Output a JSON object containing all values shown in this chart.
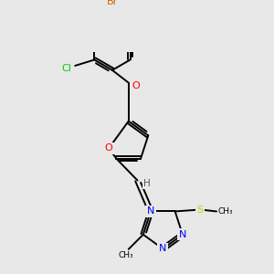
{
  "background_color": "#e8e8e8",
  "bond_color": "#000000",
  "atom_colors": {
    "N": "#0000ff",
    "O": "#ff0000",
    "S": "#cccc00",
    "Cl": "#00cc00",
    "Br": "#cc6600",
    "C": "#000000",
    "H": "#555555"
  },
  "figsize": [
    3.0,
    3.0
  ],
  "dpi": 100
}
